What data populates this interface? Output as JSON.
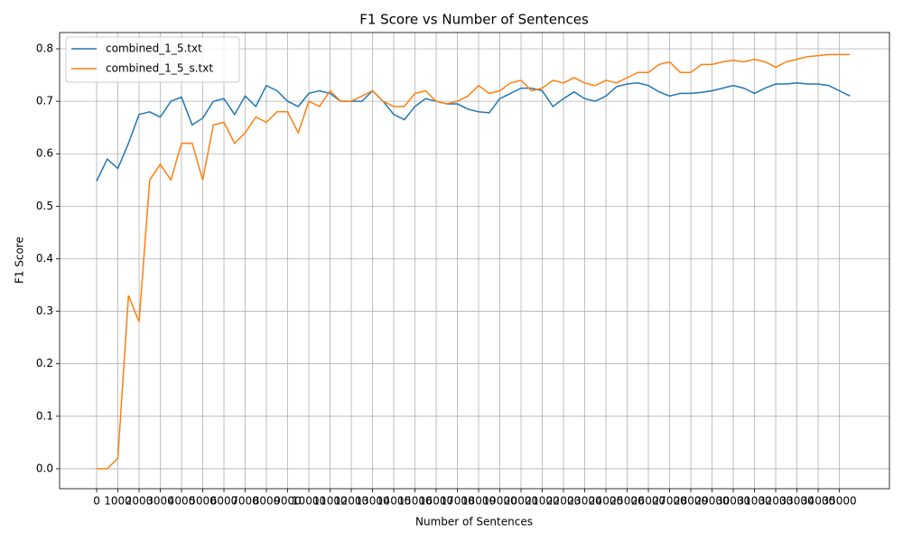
{
  "chart_data": {
    "type": "line",
    "title": "F1 Score vs Number of Sentences",
    "xlabel": "Number of Sentences",
    "ylabel": "F1 Score",
    "x": [
      0,
      500,
      1000,
      1500,
      2000,
      2500,
      3000,
      3500,
      4000,
      4500,
      5000,
      5500,
      6000,
      6500,
      7000,
      7500,
      8000,
      8500,
      9000,
      9500,
      10000,
      10500,
      11000,
      11500,
      12000,
      12500,
      13000,
      13500,
      14000,
      14500,
      15000,
      15500,
      16000,
      16500,
      17000,
      17500,
      18000,
      18500,
      19000,
      19500,
      20000,
      20500,
      21000,
      21500,
      22000,
      22500,
      23000,
      23500,
      24000,
      24500,
      25000,
      25500,
      26000,
      26500,
      27000,
      27500,
      28000,
      28500,
      29000,
      29500,
      30000,
      30500,
      31000,
      31500,
      32000,
      32500,
      33000,
      33500,
      34000,
      34500,
      35000,
      35500
    ],
    "series": [
      {
        "name": "combined_1_5.txt",
        "color": "#1f77b4",
        "values": [
          0.548,
          0.59,
          0.572,
          0.62,
          0.675,
          0.68,
          0.67,
          0.7,
          0.708,
          0.655,
          0.668,
          0.7,
          0.705,
          0.675,
          0.71,
          0.69,
          0.73,
          0.72,
          0.7,
          0.69,
          0.715,
          0.72,
          0.715,
          0.7,
          0.7,
          0.7,
          0.72,
          0.7,
          0.675,
          0.665,
          0.69,
          0.705,
          0.7,
          0.695,
          0.695,
          0.685,
          0.68,
          0.678,
          0.705,
          0.715,
          0.725,
          0.725,
          0.72,
          0.69,
          0.705,
          0.718,
          0.705,
          0.7,
          0.71,
          0.728,
          0.733,
          0.735,
          0.73,
          0.718,
          0.71,
          0.715,
          0.715,
          0.717,
          0.72,
          0.725,
          0.73,
          0.725,
          0.715,
          0.725,
          0.733,
          0.733,
          0.735,
          0.733,
          0.733,
          0.73,
          0.72,
          0.71
        ]
      },
      {
        "name": "combined_1_5_s.txt",
        "color": "#ff7f0e",
        "values": [
          0,
          0,
          0.02,
          0.33,
          0.28,
          0.55,
          0.58,
          0.55,
          0.62,
          0.62,
          0.55,
          0.655,
          0.66,
          0.62,
          0.64,
          0.67,
          0.66,
          0.68,
          0.68,
          0.64,
          0.7,
          0.69,
          0.72,
          0.7,
          0.7,
          0.71,
          0.72,
          0.7,
          0.69,
          0.69,
          0.715,
          0.72,
          0.7,
          0.695,
          0.7,
          0.71,
          0.73,
          0.715,
          0.72,
          0.735,
          0.74,
          0.72,
          0.725,
          0.74,
          0.735,
          0.745,
          0.735,
          0.73,
          0.74,
          0.735,
          0.745,
          0.755,
          0.755,
          0.77,
          0.775,
          0.755,
          0.755,
          0.77,
          0.77,
          0.775,
          0.778,
          0.775,
          0.78,
          0.775,
          0.765,
          0.775,
          0.78,
          0.785,
          0.787,
          0.789,
          0.789,
          0.789
        ]
      }
    ],
    "xlim": [
      -1745,
      37360
    ],
    "ylim": [
      -0.038,
      0.831
    ],
    "xticks": [
      0,
      1000,
      2000,
      3000,
      4000,
      5000,
      6000,
      7000,
      8000,
      9000,
      10000,
      11000,
      12000,
      13000,
      14000,
      15000,
      16000,
      17000,
      18000,
      19000,
      20000,
      21000,
      22000,
      23000,
      24000,
      25000,
      26000,
      27000,
      28000,
      29000,
      30000,
      31000,
      32000,
      33000,
      34000,
      35000
    ],
    "yticks": [
      {
        "value": 0,
        "label": "0.0"
      },
      0.1,
      0.2,
      0.3,
      0.4,
      0.5,
      0.6,
      0.7,
      0.8
    ],
    "grid": true,
    "legend": "upper left"
  }
}
